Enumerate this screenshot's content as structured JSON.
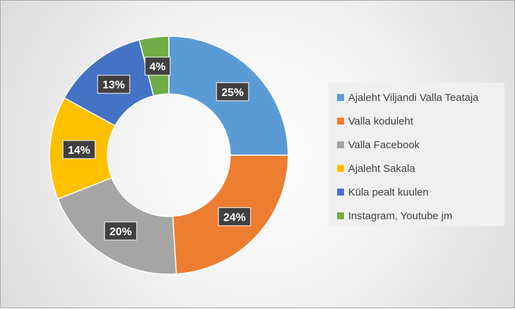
{
  "chart_data": {
    "type": "pie",
    "variant": "donut",
    "categories": [
      "Ajaleht Viljandi Valla Teataja",
      "Valla koduleht",
      "Valla Facebook",
      "Ajaleht Sakala",
      "Küla pealt kuulen",
      "Instagram, Youtube jm"
    ],
    "values": [
      25,
      24,
      20,
      14,
      13,
      4
    ],
    "labels": [
      "25%",
      "24%",
      "20%",
      "14%",
      "13%",
      "4%"
    ],
    "colors": [
      "#5b9bd5",
      "#ed7d31",
      "#a5a5a5",
      "#ffc000",
      "#4472c4",
      "#70ad47"
    ],
    "legend_position": "right"
  }
}
